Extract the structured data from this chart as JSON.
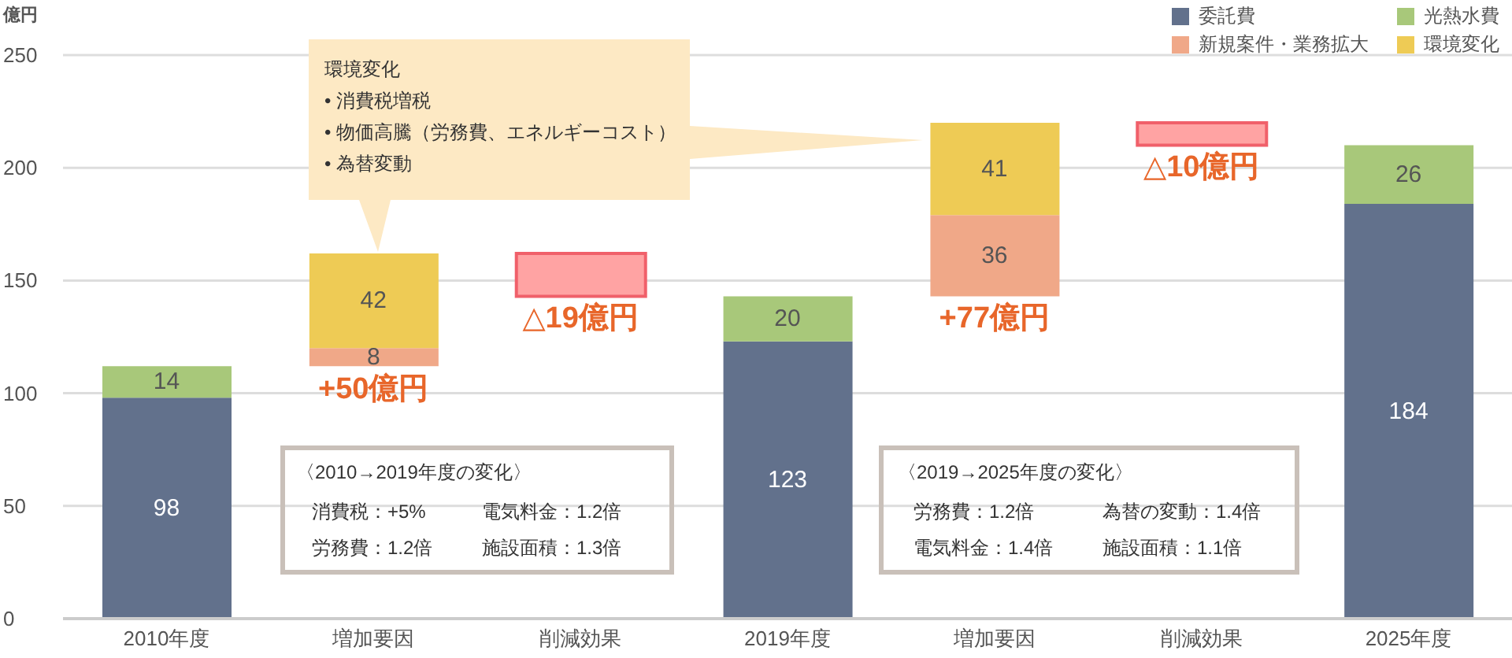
{
  "chart_data": {
    "type": "bar",
    "stacked": true,
    "ylabel": "億円",
    "categories": [
      "2010年度",
      "増加要因",
      "削減効果",
      "2019年度",
      "増加要因",
      "削減効果",
      "2025年度"
    ],
    "series": [
      {
        "name": "委託費",
        "color": "#62718c",
        "values": [
          98,
          null,
          null,
          123,
          null,
          null,
          184
        ],
        "value_labels": [
          "98",
          null,
          null,
          "123",
          null,
          null,
          "184"
        ]
      },
      {
        "name": "光熱水費",
        "color": "#a8c87a",
        "values": [
          14,
          null,
          null,
          20,
          null,
          null,
          26
        ],
        "value_labels": [
          "14",
          null,
          null,
          "20",
          null,
          null,
          "26"
        ]
      },
      {
        "name": "新規案件・業務拡大",
        "color": "#f0a888",
        "base": [
          null,
          112,
          null,
          null,
          143,
          null,
          null
        ],
        "values": [
          null,
          8,
          null,
          null,
          36,
          null,
          null
        ],
        "value_labels": [
          null,
          "8",
          null,
          null,
          "36",
          null,
          null
        ]
      },
      {
        "name": "環境変化",
        "color": "#eecb55",
        "base": [
          null,
          120,
          null,
          null,
          179,
          null,
          null
        ],
        "values": [
          null,
          42,
          null,
          null,
          41,
          null,
          null
        ],
        "value_labels": [
          null,
          "42",
          null,
          null,
          "41",
          null,
          null
        ]
      },
      {
        "color": "#ffa3a3",
        "base": [
          null,
          null,
          143,
          null,
          null,
          210,
          null
        ],
        "values": [
          null,
          null,
          19,
          null,
          null,
          10,
          null
        ]
      }
    ],
    "totals": [
      null,
      "+50億円",
      "△19億円",
      null,
      "+77億円",
      "△10億円",
      null
    ],
    "ylim": [
      0,
      250
    ],
    "yticks": [
      0,
      50,
      100,
      150,
      200,
      250
    ],
    "grid": "y",
    "legend": "top right",
    "annotations": [
      "環境変化\n• 消費税増税\n• 物価高騰（労務費、エネルギーコスト）\n• 為替変動",
      "〈2010→2019年度の変化〉",
      "消費税：+5%",
      "電気料金：1.2倍",
      "労務費：1.2倍",
      "施設面積：1.3倍",
      "〈2019→2025年度の変化〉",
      "労務費：1.2倍",
      "為替の変動：1.4倍",
      "電気料金：1.4倍",
      "施設面積：1.1倍"
    ]
  }
}
